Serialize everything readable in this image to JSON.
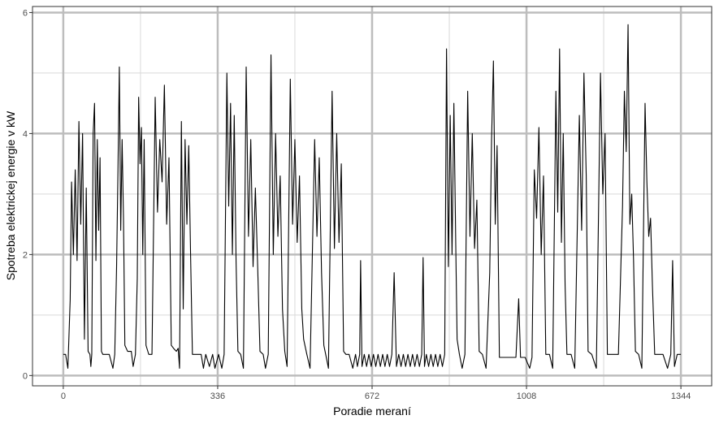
{
  "chart_data": {
    "type": "line",
    "x_label": "Poradie meraní",
    "y_label": "Spotreba elektrickej energie v kW",
    "xlim": [
      -67,
      1411
    ],
    "ylim": [
      -0.17,
      6.1
    ],
    "xticks": [
      0,
      336,
      672,
      1008,
      1344
    ],
    "yticks": [
      0,
      2,
      4,
      6
    ],
    "x_minor_grid": [
      168,
      504,
      840,
      1176
    ],
    "y_minor_grid": [
      1,
      3,
      5
    ],
    "grid": true,
    "series": [
      {
        "color": "#000000",
        "x": [
          0,
          5,
          10,
          15,
          18,
          22,
          26,
          30,
          34,
          38,
          42,
          46,
          50,
          54,
          58,
          60,
          62,
          65,
          68,
          71,
          74,
          77,
          80,
          83,
          86,
          95,
          100,
          108,
          112,
          116,
          119,
          122,
          125,
          128,
          131,
          134,
          140,
          148,
          152,
          157,
          161,
          164,
          167,
          170,
          173,
          176,
          180,
          186,
          193,
          200,
          205,
          210,
          215,
          220,
          225,
          230,
          235,
          240,
          246,
          250,
          253,
          257,
          261,
          265,
          269,
          273,
          277,
          281,
          290,
          300,
          305,
          310,
          318,
          325,
          330,
          338,
          345,
          350,
          356,
          360,
          364,
          368,
          372,
          376,
          380,
          386,
          392,
          398,
          403,
          408,
          413,
          418,
          423,
          428,
          435,
          440,
          446,
          452,
          457,
          462,
          467,
          472,
          477,
          482,
          487,
          494,
          499,
          504,
          509,
          514,
          519,
          523,
          530,
          537,
          547,
          552,
          557,
          562,
          567,
          571,
          577,
          585,
          590,
          595,
          600,
          605,
          610,
          615,
          622,
          630,
          636,
          640,
          645,
          647,
          650,
          655,
          660,
          665,
          670,
          675,
          680,
          685,
          690,
          695,
          700,
          705,
          710,
          715,
          720,
          725,
          730,
          735,
          740,
          745,
          750,
          755,
          760,
          765,
          770,
          775,
          780,
          783,
          786,
          790,
          795,
          800,
          805,
          810,
          815,
          820,
          825,
          830,
          834,
          838,
          842,
          846,
          850,
          854,
          857,
          862,
          868,
          874,
          880,
          885,
          890,
          895,
          900,
          905,
          912,
          920,
          928,
          932,
          936,
          940,
          944,
          949,
          955,
          965,
          975,
          985,
          991,
          995,
          1005,
          1015,
          1020,
          1025,
          1030,
          1035,
          1040,
          1045,
          1050,
          1058,
          1065,
          1072,
          1076,
          1080,
          1084,
          1088,
          1092,
          1096,
          1105,
          1113,
          1123,
          1128,
          1133,
          1138,
          1142,
          1150,
          1160,
          1169,
          1174,
          1179,
          1184,
          1192,
          1200,
          1208,
          1217,
          1221,
          1225,
          1229,
          1233,
          1237,
          1241,
          1245,
          1252,
          1259,
          1266,
          1270,
          1274,
          1278,
          1282,
          1287,
          1295,
          1305,
          1315,
          1322,
          1326,
          1330,
          1336,
          1344
        ],
        "values": [
          0.35,
          0.35,
          0.12,
          1.25,
          3.2,
          2.0,
          3.4,
          1.9,
          4.2,
          2.5,
          4.0,
          0.6,
          3.1,
          0.4,
          0.35,
          0.15,
          0.35,
          4.0,
          4.5,
          1.9,
          3.9,
          2.4,
          3.6,
          0.4,
          0.35,
          0.35,
          0.35,
          0.12,
          0.35,
          1.8,
          3.4,
          5.1,
          2.4,
          3.9,
          2.6,
          0.5,
          0.4,
          0.4,
          0.15,
          0.35,
          1.6,
          4.6,
          3.5,
          4.1,
          2.0,
          3.9,
          0.5,
          0.35,
          0.35,
          4.6,
          2.7,
          3.9,
          3.2,
          4.8,
          2.5,
          3.6,
          0.5,
          0.45,
          0.4,
          0.45,
          0.12,
          4.2,
          1.1,
          3.9,
          2.5,
          3.8,
          2.0,
          0.35,
          0.35,
          0.35,
          0.12,
          0.35,
          0.15,
          0.35,
          0.12,
          0.35,
          0.12,
          0.35,
          5.0,
          2.8,
          4.5,
          2.0,
          4.3,
          1.9,
          0.4,
          0.35,
          0.12,
          5.1,
          2.3,
          3.9,
          1.8,
          3.1,
          1.8,
          0.4,
          0.35,
          0.12,
          0.35,
          5.3,
          2.0,
          4.0,
          2.3,
          3.3,
          1.1,
          0.4,
          0.15,
          4.9,
          2.5,
          3.9,
          2.2,
          3.3,
          1.1,
          0.6,
          0.35,
          0.12,
          3.9,
          2.3,
          3.6,
          1.7,
          0.5,
          0.35,
          0.12,
          4.7,
          2.1,
          4.0,
          2.2,
          3.5,
          0.4,
          0.35,
          0.35,
          0.12,
          0.35,
          0.15,
          0.35,
          1.9,
          0.15,
          0.35,
          0.15,
          0.35,
          0.15,
          0.35,
          0.15,
          0.35,
          0.15,
          0.35,
          0.15,
          0.35,
          0.15,
          0.35,
          1.7,
          0.15,
          0.35,
          0.15,
          0.35,
          0.15,
          0.35,
          0.15,
          0.35,
          0.15,
          0.35,
          0.15,
          0.35,
          1.95,
          0.15,
          0.35,
          0.15,
          0.35,
          0.15,
          0.35,
          0.15,
          0.35,
          0.15,
          0.35,
          5.4,
          1.8,
          4.3,
          2.0,
          4.5,
          2.2,
          0.6,
          0.35,
          0.12,
          0.35,
          4.7,
          2.3,
          4.0,
          2.1,
          2.9,
          0.4,
          0.35,
          0.12,
          1.7,
          3.9,
          5.2,
          2.5,
          3.8,
          0.3,
          0.3,
          0.3,
          0.3,
          0.3,
          1.27,
          0.3,
          0.3,
          0.12,
          0.3,
          3.4,
          2.6,
          4.1,
          2.0,
          3.3,
          0.35,
          0.35,
          0.12,
          4.7,
          2.7,
          5.4,
          2.2,
          4.0,
          1.5,
          0.35,
          0.35,
          0.12,
          4.3,
          2.4,
          5.0,
          3.3,
          0.4,
          0.35,
          0.12,
          5.0,
          3.0,
          4.0,
          0.35,
          0.35,
          0.35,
          0.35,
          2.8,
          4.7,
          3.7,
          5.8,
          2.5,
          3.0,
          1.9,
          0.4,
          0.35,
          0.12,
          4.5,
          3.2,
          2.3,
          2.6,
          1.5,
          0.35,
          0.35,
          0.35,
          0.12,
          0.35,
          1.9,
          0.15,
          0.35,
          0.35
        ]
      }
    ]
  }
}
